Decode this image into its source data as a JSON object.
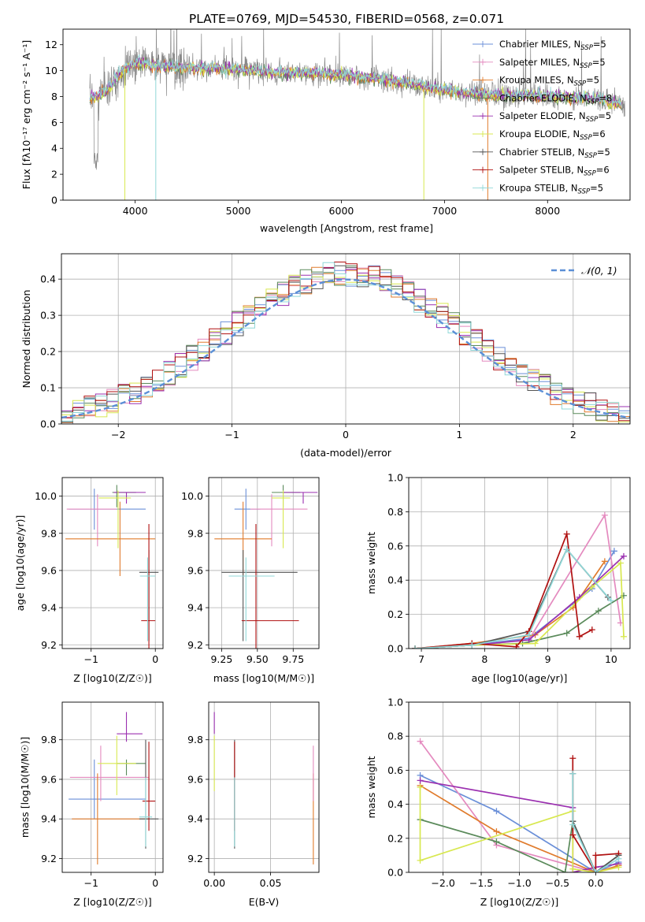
{
  "figure_title": "PLATE=0769, MJD=54530, FIBERID=0568, z=0.071",
  "colors": {
    "Chabrier MILES": "#6a8fd8",
    "Salpeter MILES": "#e48abf",
    "Kroupa MILES": "#e07b2c",
    "Chabrier ELODIE": "#5a8a5a",
    "Salpeter ELODIE": "#9b30b0",
    "Kroupa ELODIE": "#d8e850",
    "Chabrier STELIB": "#555555",
    "Salpeter STELIB": "#b01010",
    "Kroupa STELIB": "#90d8d8"
  },
  "chart_data": [
    {
      "id": "spectrum",
      "type": "line",
      "title": "",
      "xlabel": "wavelength [Angstrom, rest frame]",
      "ylabel": "Flux [fλ10⁻¹⁷ erg cm⁻² s⁻¹ A⁻¹]",
      "xlim": [
        3300,
        8800
      ],
      "ylim": [
        0,
        13.2
      ],
      "xticks": [
        4000,
        5000,
        6000,
        7000,
        8000
      ],
      "yticks": [
        0,
        2,
        4,
        6,
        8,
        10,
        12
      ],
      "grid": false,
      "legend_position": "top-right",
      "legend": [
        "Chabrier MILES, N_SSP=5",
        "Salpeter MILES, N_SSP=5",
        "Kroupa MILES, N_SSP=5",
        "Chabrier ELODIE, N_SSP=8",
        "Salpeter ELODIE, N_SSP=5",
        "Kroupa ELODIE, N_SSP=6",
        "Chabrier STELIB, N_SSP=5",
        "Salpeter STELIB, N_SSP=6",
        "Kroupa STELIB, N_SSP=5"
      ],
      "series_data_color": "#888888",
      "data_trend": {
        "x": [
          3560,
          3700,
          3900,
          4000,
          4200,
          4500,
          5000,
          5500,
          6000,
          6500,
          7000,
          7500,
          8000,
          8500,
          8750
        ],
        "y": [
          7.8,
          8.3,
          10.2,
          10.6,
          10.4,
          10.2,
          10.1,
          9.8,
          9.7,
          9.2,
          8.5,
          8.1,
          8.0,
          7.8,
          7.3
        ]
      }
    },
    {
      "id": "residuals",
      "type": "histogram",
      "xlabel": "(data-model)/error",
      "ylabel": "Normed distribution",
      "xlim": [
        -2.5,
        2.5
      ],
      "ylim": [
        0,
        0.47
      ],
      "xticks": [
        -2,
        -1,
        0,
        1,
        2
      ],
      "yticks": [
        0.0,
        0.1,
        0.2,
        0.3,
        0.4
      ],
      "grid": true,
      "legend_position": "top-right",
      "legend": [
        "𝒩(0, 1)"
      ],
      "bins": [
        -2.5,
        -2.4,
        -2.3,
        -2.2,
        -2.1,
        -2.0,
        -1.9,
        -1.8,
        -1.7,
        -1.6,
        -1.5,
        -1.4,
        -1.3,
        -1.2,
        -1.1,
        -1.0,
        -0.9,
        -0.8,
        -0.7,
        -0.6,
        -0.5,
        -0.4,
        -0.3,
        -0.2,
        -0.1,
        0.0,
        0.1,
        0.2,
        0.3,
        0.4,
        0.5,
        0.6,
        0.7,
        0.8,
        0.9,
        1.0,
        1.1,
        1.2,
        1.3,
        1.4,
        1.5,
        1.6,
        1.7,
        1.8,
        1.9,
        2.0,
        2.1,
        2.2,
        2.3,
        2.4,
        2.5
      ]
    },
    {
      "id": "age-vs-Z",
      "type": "errorbar",
      "xlabel": "Z [log10(Z/Z☉)]",
      "ylabel": "age  [log10(age/yr)]",
      "xlim": [
        -1.45,
        0.12
      ],
      "ylim": [
        9.18,
        10.1
      ],
      "xticks": [
        -1,
        0
      ],
      "yticks": [
        9.2,
        9.4,
        9.6,
        9.8,
        10.0
      ],
      "grid": true,
      "points": [
        {
          "model": "Chabrier MILES",
          "x": -0.95,
          "xerr": [
            0.4,
            0.8
          ],
          "y": 9.93,
          "yerr": [
            0.11,
            0.11
          ]
        },
        {
          "model": "Salpeter MILES",
          "x": -0.9,
          "xerr": [
            0.48,
            0.3
          ],
          "y": 9.93,
          "yerr": [
            0.2,
            0.08
          ]
        },
        {
          "model": "Kroupa MILES",
          "x": -0.55,
          "xerr": [
            0.85,
            0.55
          ],
          "y": 9.77,
          "yerr": [
            0.2,
            0.2
          ]
        },
        {
          "model": "Chabrier ELODIE",
          "x": -0.6,
          "xerr": [
            0.07,
            0.3
          ],
          "y": 10.02,
          "yerr": [
            0.08,
            0.04
          ]
        },
        {
          "model": "Salpeter ELODIE",
          "x": -0.45,
          "xerr": [
            0.2,
            0.3
          ],
          "y": 10.02,
          "yerr": [
            0.06,
            0.0
          ]
        },
        {
          "model": "Kroupa ELODIE",
          "x": -0.58,
          "xerr": [
            0.3,
            0.2
          ],
          "y": 9.99,
          "yerr": [
            0.27,
            0.04
          ]
        },
        {
          "model": "Chabrier STELIB",
          "x": -0.1,
          "xerr": [
            0.15,
            0.15
          ],
          "y": 9.59,
          "yerr": [
            0.37,
            0.12
          ]
        },
        {
          "model": "Salpeter STELIB",
          "x": -0.1,
          "xerr": [
            0.12,
            0.1
          ],
          "y": 9.33,
          "yerr": [
            0.15,
            0.52
          ]
        },
        {
          "model": "Kroupa STELIB",
          "x": -0.12,
          "xerr": [
            0.12,
            0.12
          ],
          "y": 9.57,
          "yerr": [
            0.35,
            0.1
          ]
        }
      ]
    },
    {
      "id": "age-vs-mass",
      "type": "errorbar",
      "xlabel": "mass [log10(M/M☉)]",
      "ylabel": "",
      "xlim": [
        9.16,
        9.93
      ],
      "ylim": [
        9.18,
        10.1
      ],
      "xticks": [
        9.25,
        9.5,
        9.75
      ],
      "xtick_labels": [
        "9.25",
        "9.50",
        "9.75"
      ],
      "yticks": [
        9.2,
        9.4,
        9.6,
        9.8,
        10.0
      ],
      "grid": true,
      "points": [
        {
          "model": "Chabrier MILES",
          "x": 9.42,
          "xerr": [
            0.08,
            0.1
          ],
          "y": 9.93,
          "yerr": [
            0.11,
            0.11
          ]
        },
        {
          "model": "Salpeter MILES",
          "x": 9.6,
          "xerr": [
            0.15,
            0.25
          ],
          "y": 9.93,
          "yerr": [
            0.2,
            0.08
          ]
        },
        {
          "model": "Kroupa MILES",
          "x": 9.4,
          "xerr": [
            0.2,
            0.2
          ],
          "y": 9.77,
          "yerr": [
            0.2,
            0.2
          ]
        },
        {
          "model": "Chabrier ELODIE",
          "x": 9.68,
          "xerr": [
            0.08,
            0.12
          ],
          "y": 10.02,
          "yerr": [
            0.08,
            0.04
          ]
        },
        {
          "model": "Salpeter ELODIE",
          "x": 9.82,
          "xerr": [
            0.14,
            0.1
          ],
          "y": 10.02,
          "yerr": [
            0.06,
            0.0
          ]
        },
        {
          "model": "Kroupa ELODIE",
          "x": 9.68,
          "xerr": [
            0.08,
            0.05
          ],
          "y": 9.99,
          "yerr": [
            0.27,
            0.04
          ]
        },
        {
          "model": "Chabrier STELIB",
          "x": 9.4,
          "xerr": [
            0.15,
            0.38
          ],
          "y": 9.59,
          "yerr": [
            0.37,
            0.12
          ]
        },
        {
          "model": "Salpeter STELIB",
          "x": 9.49,
          "xerr": [
            0.1,
            0.3
          ],
          "y": 9.33,
          "yerr": [
            0.15,
            0.52
          ]
        },
        {
          "model": "Kroupa STELIB",
          "x": 9.42,
          "xerr": [
            0.12,
            0.2
          ],
          "y": 9.57,
          "yerr": [
            0.35,
            0.1
          ]
        }
      ]
    },
    {
      "id": "massweight-vs-age",
      "type": "line",
      "xlabel": "age  [log10(age/yr)]",
      "ylabel": "mass weight",
      "xlim": [
        6.8,
        10.3
      ],
      "ylim": [
        0,
        1.0
      ],
      "xticks": [
        7,
        8,
        9,
        10
      ],
      "yticks": [
        0.0,
        0.2,
        0.4,
        0.6,
        0.8,
        1.0
      ],
      "grid": true,
      "series": [
        {
          "model": "Chabrier MILES",
          "x": [
            6.9,
            7.8,
            8.7,
            9.7,
            10.05
          ],
          "y": [
            0.0,
            0.02,
            0.06,
            0.35,
            0.57
          ]
        },
        {
          "model": "Salpeter MILES",
          "x": [
            6.9,
            7.8,
            8.7,
            9.9,
            10.15
          ],
          "y": [
            0.0,
            0.02,
            0.05,
            0.78,
            0.15
          ]
        },
        {
          "model": "Kroupa MILES",
          "x": [
            6.9,
            7.8,
            8.8,
            9.4,
            9.9
          ],
          "y": [
            0.0,
            0.03,
            0.08,
            0.24,
            0.51
          ]
        },
        {
          "model": "Chabrier ELODIE",
          "x": [
            6.9,
            7.8,
            8.6,
            9.3,
            9.8,
            10.2
          ],
          "y": [
            0.0,
            0.02,
            0.03,
            0.09,
            0.22,
            0.31
          ]
        },
        {
          "model": "Salpeter ELODIE",
          "x": [
            6.9,
            7.8,
            8.7,
            9.5,
            10.2
          ],
          "y": [
            0.0,
            0.02,
            0.05,
            0.3,
            0.54
          ]
        },
        {
          "model": "Kroupa ELODIE",
          "x": [
            6.9,
            7.8,
            8.8,
            9.7,
            10.15,
            10.2
          ],
          "y": [
            0.0,
            0.02,
            0.03,
            0.36,
            0.5,
            0.07
          ]
        },
        {
          "model": "Chabrier STELIB",
          "x": [
            6.9,
            7.8,
            8.7,
            9.3,
            9.95
          ],
          "y": [
            0.0,
            0.02,
            0.1,
            0.58,
            0.3
          ]
        },
        {
          "model": "Salpeter STELIB",
          "x": [
            6.9,
            7.8,
            8.5,
            8.7,
            9.3,
            9.5,
            9.7
          ],
          "y": [
            0.0,
            0.03,
            0.01,
            0.1,
            0.67,
            0.07,
            0.11
          ]
        },
        {
          "model": "Kroupa STELIB",
          "x": [
            6.9,
            7.8,
            8.7,
            9.3,
            10.0
          ],
          "y": [
            0.0,
            0.02,
            0.08,
            0.58,
            0.28
          ]
        }
      ]
    },
    {
      "id": "mass-vs-Z",
      "type": "errorbar",
      "xlabel": "Z [log10(Z/Z☉)]",
      "ylabel": "mass [log10(M/M☉)]",
      "xlim": [
        -1.45,
        0.12
      ],
      "ylim": [
        9.13,
        9.99
      ],
      "xticks": [
        -1,
        0
      ],
      "yticks": [
        9.2,
        9.4,
        9.6,
        9.8
      ],
      "grid": true,
      "points": [
        {
          "model": "Chabrier MILES",
          "x": -0.95,
          "xerr": [
            0.4,
            0.8
          ],
          "y": 9.5,
          "yerr": [
            0.1,
            0.2
          ]
        },
        {
          "model": "Salpeter MILES",
          "x": -0.85,
          "xerr": [
            0.48,
            0.75
          ],
          "y": 9.61,
          "yerr": [
            0.12,
            0.16
          ]
        },
        {
          "model": "Kroupa MILES",
          "x": -0.9,
          "xerr": [
            0.4,
            0.8
          ],
          "y": 9.4,
          "yerr": [
            0.23,
            0.23
          ]
        },
        {
          "model": "Chabrier ELODIE",
          "x": -0.45,
          "xerr": [
            0.15,
            0.3
          ],
          "y": 9.68,
          "yerr": [
            0.06,
            0.02
          ]
        },
        {
          "model": "Salpeter ELODIE",
          "x": -0.45,
          "xerr": [
            0.15,
            0.25
          ],
          "y": 9.83,
          "yerr": [
            0.04,
            0.11
          ]
        },
        {
          "model": "Kroupa ELODIE",
          "x": -0.6,
          "xerr": [
            0.3,
            0.3
          ],
          "y": 9.68,
          "yerr": [
            0.16,
            0.14
          ]
        },
        {
          "model": "Chabrier STELIB",
          "x": -0.15,
          "xerr": [
            0.1,
            0.2
          ],
          "y": 9.4,
          "yerr": [
            0.15,
            0.4
          ]
        },
        {
          "model": "Salpeter STELIB",
          "x": -0.1,
          "xerr": [
            0.1,
            0.1
          ],
          "y": 9.49,
          "yerr": [
            0.15,
            0.3
          ]
        },
        {
          "model": "Kroupa STELIB",
          "x": -0.15,
          "xerr": [
            0.1,
            0.1
          ],
          "y": 9.41,
          "yerr": [
            0.15,
            0.2
          ]
        }
      ]
    },
    {
      "id": "mass-vs-EBV",
      "type": "errorbar",
      "xlabel": "E(B-V)",
      "ylabel": "",
      "xlim": [
        -0.005,
        0.093
      ],
      "ylim": [
        9.13,
        9.99
      ],
      "xticks": [
        0.0,
        0.05
      ],
      "xtick_labels": [
        "0.00",
        "0.05"
      ],
      "yticks": [
        9.2,
        9.4,
        9.6,
        9.8
      ],
      "grid": true,
      "points": [
        {
          "model": "Kroupa ELODIE",
          "x": 0.0,
          "y": 9.68,
          "yerr": [
            0.14,
            0.14
          ]
        },
        {
          "model": "Salpeter ELODIE",
          "x": 0.0,
          "y": 9.83,
          "yerr": [
            0.0,
            0.11
          ]
        },
        {
          "model": "Chabrier STELIB",
          "x": 0.018,
          "y": 9.4,
          "yerr": [
            0.15,
            0.4
          ]
        },
        {
          "model": "Salpeter STELIB",
          "x": 0.018,
          "y": 9.49,
          "yerr": [
            0.15,
            0.3
          ]
        },
        {
          "model": "Kroupa STELIB",
          "x": 0.018,
          "y": 9.41,
          "yerr": [
            0.15,
            0.2
          ]
        },
        {
          "model": "Kroupa MILES",
          "x": 0.088,
          "y": 9.4,
          "yerr": [
            0.23,
            0.23
          ]
        },
        {
          "model": "Salpeter MILES",
          "x": 0.088,
          "y": 9.61,
          "yerr": [
            0.12,
            0.16
          ]
        }
      ]
    },
    {
      "id": "massweight-vs-Z",
      "type": "line",
      "xlabel": "Z [log10(Z/Z☉)]",
      "ylabel": "mass weight",
      "xlim": [
        -2.45,
        0.45
      ],
      "ylim": [
        0,
        1.0
      ],
      "xticks": [
        -2.0,
        -1.5,
        -1.0,
        -0.5,
        0.0
      ],
      "xtick_labels": [
        "−2.0",
        "−1.5",
        "−1.0",
        "−0.5",
        "0.0"
      ],
      "yticks": [
        0.0,
        0.2,
        0.4,
        0.6,
        0.8,
        1.0
      ],
      "grid": true,
      "series": [
        {
          "model": "Chabrier MILES",
          "x": [
            -2.3,
            -1.3,
            0.0,
            0.3
          ],
          "y": [
            0.57,
            0.36,
            0.0,
            0.06
          ]
        },
        {
          "model": "Salpeter MILES",
          "x": [
            -2.3,
            -1.3,
            0.0,
            0.3
          ],
          "y": [
            0.77,
            0.16,
            0.0,
            0.04
          ]
        },
        {
          "model": "Kroupa MILES",
          "x": [
            -2.3,
            -1.3,
            0.0,
            0.3
          ],
          "y": [
            0.51,
            0.24,
            0.0,
            0.04
          ]
        },
        {
          "model": "Chabrier ELODIE",
          "x": [
            -2.3,
            -1.3,
            -0.4,
            -0.3,
            0.0,
            0.3
          ],
          "y": [
            0.31,
            0.18,
            0.0,
            0.3,
            0.0,
            0.1
          ]
        },
        {
          "model": "Salpeter ELODIE",
          "x": [
            -2.3,
            -0.3,
            -0.3,
            0.0,
            0.3
          ],
          "y": [
            0.54,
            0.38,
            0.0,
            0.03,
            0.05
          ]
        },
        {
          "model": "Kroupa ELODIE",
          "x": [
            -2.3,
            -2.3,
            -0.3,
            -0.3,
            0.0,
            0.3
          ],
          "y": [
            0.5,
            0.07,
            0.36,
            0.02,
            0.0,
            0.03
          ]
        },
        {
          "model": "Chabrier STELIB",
          "x": [
            -0.3,
            -0.3,
            0.0,
            0.3
          ],
          "y": [
            0.58,
            0.3,
            0.0,
            0.1
          ]
        },
        {
          "model": "Salpeter STELIB",
          "x": [
            -0.3,
            -0.3,
            0.0,
            0.0,
            0.3
          ],
          "y": [
            0.67,
            0.22,
            0.0,
            0.1,
            0.11
          ]
        },
        {
          "model": "Kroupa STELIB",
          "x": [
            -0.3,
            -0.3,
            0.0,
            0.3
          ],
          "y": [
            0.58,
            0.28,
            0.0,
            0.08
          ]
        }
      ]
    }
  ]
}
